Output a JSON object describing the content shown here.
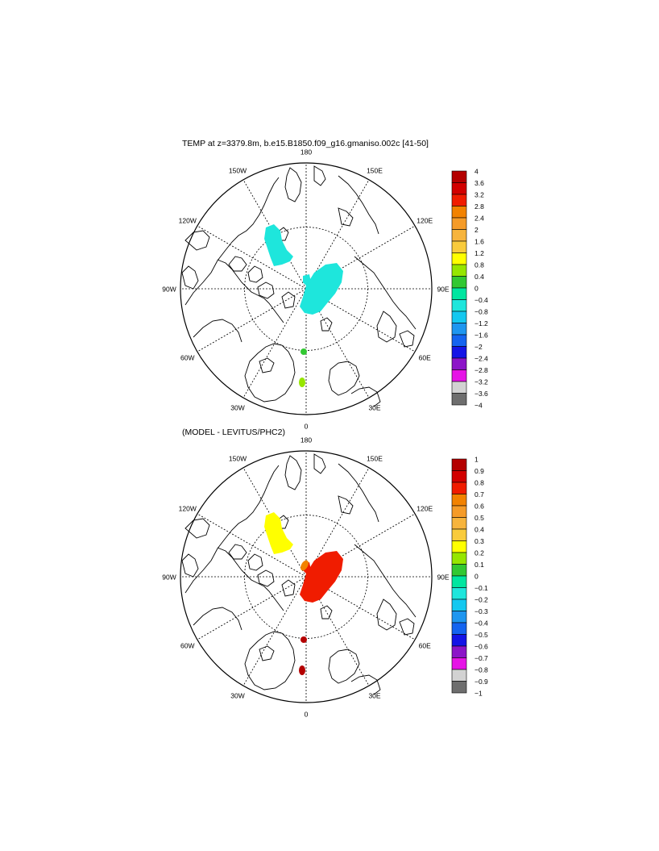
{
  "maps": [
    {
      "title": "TEMP at z=3379.8m, b.e15.B1850.f09_g16.gmaniso.002c [41-50]",
      "lon_labels": [
        "180",
        "150E",
        "120E",
        "90E",
        "60E",
        "30E",
        "0",
        "30W",
        "60W",
        "90W",
        "120W",
        "150W"
      ],
      "colorbar": {
        "labels": [
          "4",
          "3.6",
          "3.2",
          "2.8",
          "2.4",
          "2",
          "1.6",
          "1.2",
          "0.8",
          "0.4",
          "0",
          "−0.4",
          "−0.8",
          "−1.2",
          "−1.6",
          "−2",
          "−2.4",
          "−2.8",
          "−3.2",
          "−3.6",
          "−4"
        ],
        "colors": [
          "#b40000",
          "#d20000",
          "#f01c00",
          "#f28200",
          "#f59b28",
          "#f7b43c",
          "#f9cb3c",
          "#ffff00",
          "#96e600",
          "#32c832",
          "#00e6a0",
          "#1ee6dc",
          "#14c8f0",
          "#1e96f0",
          "#1464f0",
          "#1414e6",
          "#8c14c8",
          "#e614e6",
          "#d2d2d2",
          "#6e6e6e"
        ]
      },
      "anomaly_colors": {
        "region_a": "#1ee6dc",
        "region_b": "#1ee6dc",
        "spot_1": "#32c832",
        "spot_2": "#96e600"
      }
    },
    {
      "title": "(MODEL - LEVITUS/PHC2)",
      "lon_labels": [
        "180",
        "150E",
        "120E",
        "90E",
        "60E",
        "30E",
        "0",
        "30W",
        "60W",
        "90W",
        "120W",
        "150W"
      ],
      "colorbar": {
        "labels": [
          "1",
          "0.9",
          "0.8",
          "0.7",
          "0.6",
          "0.5",
          "0.4",
          "0.3",
          "0.2",
          "0.1",
          "0",
          "−0.1",
          "−0.2",
          "−0.3",
          "−0.4",
          "−0.5",
          "−0.6",
          "−0.7",
          "−0.8",
          "−0.9",
          "−1"
        ],
        "colors": [
          "#b40000",
          "#d20000",
          "#f01c00",
          "#f28200",
          "#f59b28",
          "#f7b43c",
          "#f9cb3c",
          "#ffff00",
          "#96e600",
          "#32c832",
          "#00e6a0",
          "#1ee6dc",
          "#14c8f0",
          "#1e96f0",
          "#1464f0",
          "#1414e6",
          "#8c14c8",
          "#e614e6",
          "#d2d2d2",
          "#6e6e6e"
        ]
      },
      "anomaly_colors": {
        "region_a": "#ffff00",
        "region_b": "#f01c00",
        "spot_1": "#b40000",
        "spot_2": "#b40000",
        "spot_3": "#f28200"
      }
    }
  ]
}
